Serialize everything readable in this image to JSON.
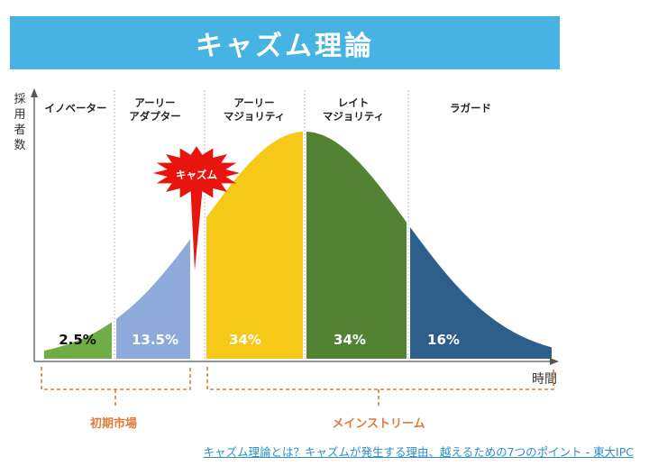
{
  "title": "キャズム理論",
  "axes": {
    "y_label": "採用者数",
    "x_label": "時間"
  },
  "chasm_label": "キャズム",
  "colors": {
    "banner": "#46b3e3",
    "innovators": "#70ad47",
    "early_adopters": "#8eaadb",
    "early_majority": "#f6c918",
    "late_majority": "#548235",
    "laggards": "#2e5f8a",
    "chasm": "#e8140e",
    "bracket": "#e07b39",
    "caption_link": "#2a8fc6"
  },
  "segments": [
    {
      "label_lines": [
        "イノベーター"
      ],
      "percent": "2.5%"
    },
    {
      "label_lines": [
        "アーリー",
        "アダプター"
      ],
      "percent": "13.5%"
    },
    {
      "label_lines": [
        "アーリー",
        "マジョリティ"
      ],
      "percent": "34%"
    },
    {
      "label_lines": [
        "レイト",
        "マジョリティ"
      ],
      "percent": "34%"
    },
    {
      "label_lines": [
        "ラガード"
      ],
      "percent": "16%"
    }
  ],
  "brackets": {
    "early_market": "初期市場",
    "mainstream": "メインストリーム"
  },
  "caption": "キャズム理論とは？キャズムが発生する理由、越えるための7つのポイント - 東大IPC"
}
